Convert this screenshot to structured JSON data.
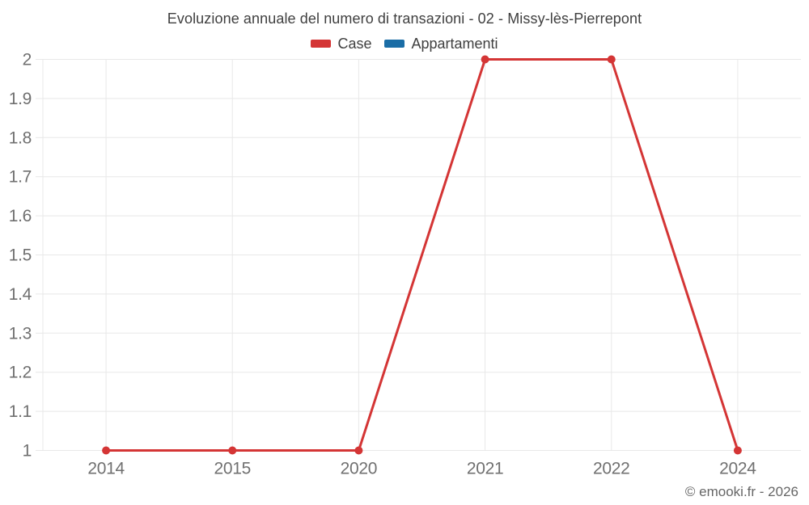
{
  "header": {
    "title": "Evoluzione annuale del numero di transazioni - 02 - Missy-lès-Pierrepont"
  },
  "legend": {
    "items": [
      {
        "label": "Case",
        "color": "#d43535"
      },
      {
        "label": "Appartamenti",
        "color": "#1a6da6"
      }
    ]
  },
  "footer": {
    "credit": "© emooki.fr - 2026"
  },
  "colors": {
    "grid": "#e8e8e8",
    "tick_text": "#707070",
    "title_text": "#3f3f3f",
    "background": "#ffffff"
  },
  "chart_data": {
    "type": "line",
    "title": "Evoluzione annuale del numero di transazioni - 02 - Missy-lès-Pierrepont",
    "categories": [
      "2014",
      "2015",
      "2020",
      "2021",
      "2022",
      "2024"
    ],
    "series": [
      {
        "name": "Case",
        "color": "#d43535",
        "values": [
          1,
          1,
          1,
          2,
          2,
          1
        ]
      },
      {
        "name": "Appartamenti",
        "color": "#1a6da6",
        "values": []
      }
    ],
    "xlabel": "",
    "ylabel": "",
    "ylim": [
      1,
      2
    ],
    "y_ticks": [
      2,
      1.9,
      1.8,
      1.7,
      1.6,
      1.5,
      1.4,
      1.3,
      1.2,
      1.1,
      1
    ],
    "y_tick_labels": [
      "2",
      "1.9",
      "1.8",
      "1.7",
      "1.6",
      "1.5",
      "1.4",
      "1.3",
      "1.2",
      "1.1",
      "1"
    ],
    "grid": true,
    "legend_position": "top",
    "marker": "circle",
    "marker_radius": 5,
    "line_width": 3
  }
}
